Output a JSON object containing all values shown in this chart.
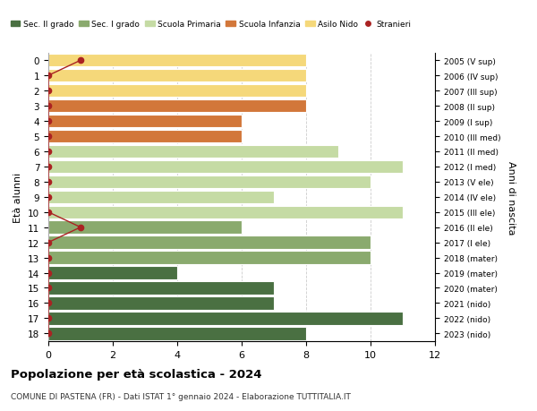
{
  "ages": [
    18,
    17,
    16,
    15,
    14,
    13,
    12,
    11,
    10,
    9,
    8,
    7,
    6,
    5,
    4,
    3,
    2,
    1,
    0
  ],
  "years": [
    "2005 (V sup)",
    "2006 (IV sup)",
    "2007 (III sup)",
    "2008 (II sup)",
    "2009 (I sup)",
    "2010 (III med)",
    "2011 (II med)",
    "2012 (I med)",
    "2013 (V ele)",
    "2014 (IV ele)",
    "2015 (III ele)",
    "2016 (II ele)",
    "2017 (I ele)",
    "2018 (mater)",
    "2019 (mater)",
    "2020 (mater)",
    "2021 (nido)",
    "2022 (nido)",
    "2023 (nido)"
  ],
  "values": [
    8,
    11,
    7,
    7,
    4,
    10,
    10,
    6,
    11,
    7,
    10,
    11,
    9,
    6,
    6,
    8,
    8,
    8,
    8
  ],
  "stranieri": [
    0,
    0,
    0,
    0,
    0,
    0,
    0,
    1,
    0,
    0,
    0,
    0,
    0,
    0,
    0,
    0,
    0,
    0,
    1
  ],
  "colors": {
    "sec2": "#4a7042",
    "sec1": "#8aaa6e",
    "primaria": "#c5dba4",
    "infanzia": "#d2773a",
    "nido": "#f5d87a",
    "stranieri": "#aa2222"
  },
  "school_types": {
    "sec2": [
      18,
      17,
      16,
      15,
      14
    ],
    "sec1": [
      13,
      12,
      11
    ],
    "primaria": [
      10,
      9,
      8,
      7,
      6
    ],
    "infanzia": [
      5,
      4,
      3
    ],
    "nido": [
      2,
      1,
      0
    ]
  },
  "title": "Popolazione per età scolastica - 2024",
  "subtitle": "COMUNE DI PASTENA (FR) - Dati ISTAT 1° gennaio 2024 - Elaborazione TUTTITALIA.IT",
  "xlabel": "Età alunni",
  "ylabel": "Anni di nascita",
  "xlim": [
    0,
    12
  ],
  "legend_labels": [
    "Sec. II grado",
    "Sec. I grado",
    "Scuola Primaria",
    "Scuola Infanzia",
    "Asilo Nido",
    "Stranieri"
  ]
}
